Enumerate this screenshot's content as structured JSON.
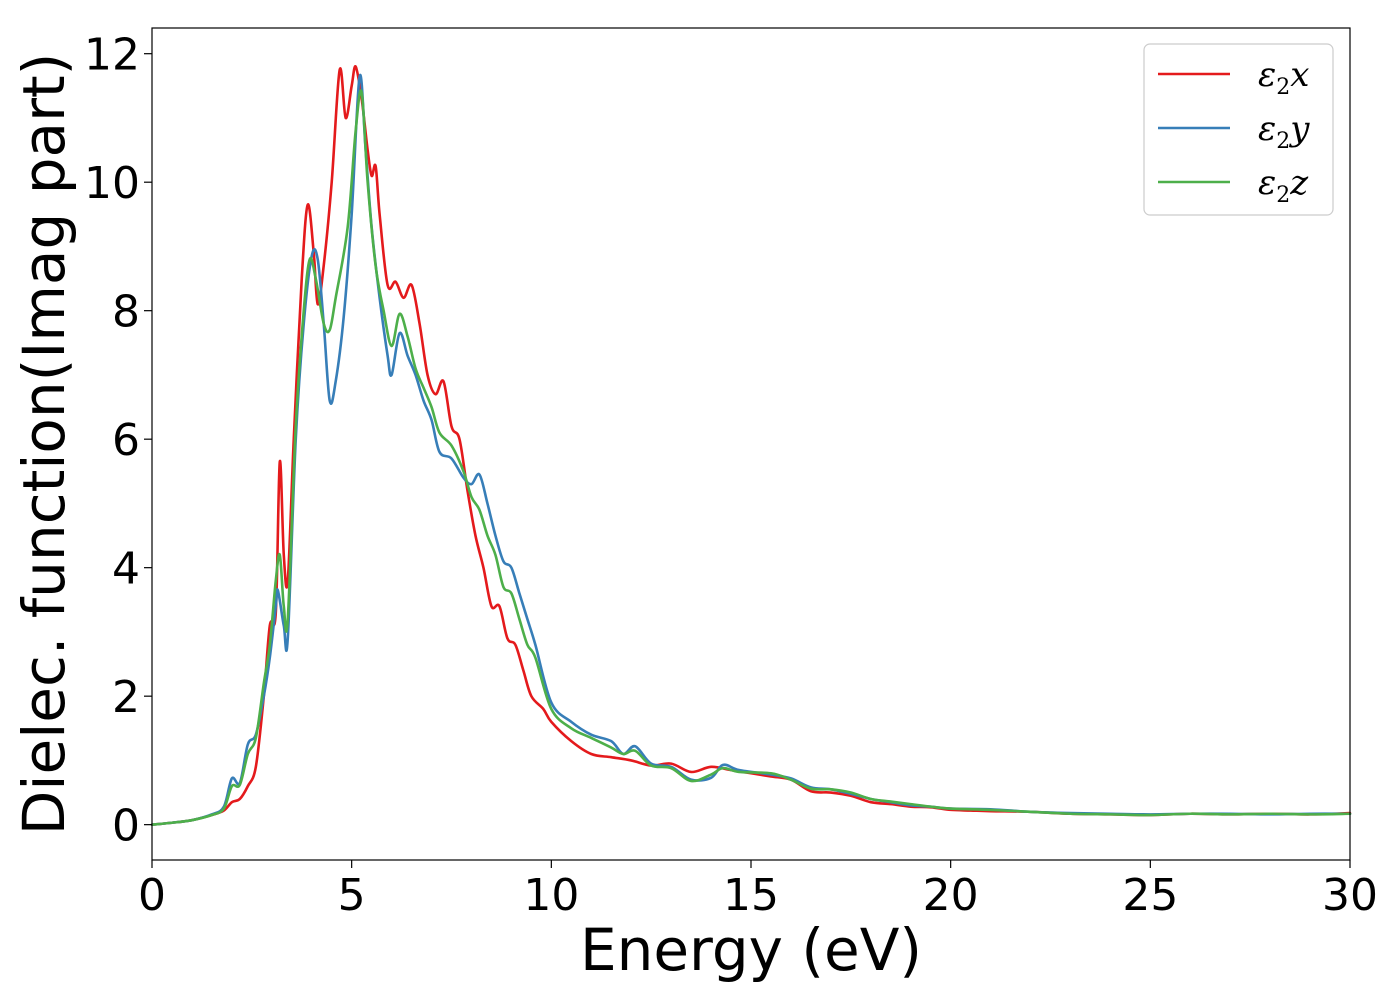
{
  "chart_data": {
    "type": "line",
    "title": "",
    "xlabel": "Energy (eV)",
    "ylabel": "Dielec. function(Imag part)",
    "xlim": [
      0,
      30
    ],
    "ylim": [
      -0.55,
      12.4
    ],
    "xticks": [
      0,
      5,
      10,
      15,
      20,
      25,
      30
    ],
    "yticks": [
      0,
      2,
      4,
      6,
      8,
      10,
      12
    ],
    "grid": false,
    "legend_position": "top-right",
    "series": [
      {
        "name": "ε₂x",
        "legend_base": "ε",
        "legend_sub": "2",
        "legend_tail": "x",
        "color": "#e41a1c",
        "points": [
          [
            0,
            0
          ],
          [
            0.5,
            0.03
          ],
          [
            1,
            0.07
          ],
          [
            1.5,
            0.15
          ],
          [
            1.8,
            0.22
          ],
          [
            2,
            0.35
          ],
          [
            2.2,
            0.4
          ],
          [
            2.4,
            0.6
          ],
          [
            2.6,
            0.9
          ],
          [
            2.8,
            2.0
          ],
          [
            2.95,
            3.1
          ],
          [
            3.1,
            3.3
          ],
          [
            3.2,
            5.65
          ],
          [
            3.3,
            4.2
          ],
          [
            3.4,
            3.8
          ],
          [
            3.55,
            6.0
          ],
          [
            3.75,
            8.5
          ],
          [
            3.9,
            9.65
          ],
          [
            4.05,
            8.9
          ],
          [
            4.15,
            8.1
          ],
          [
            4.3,
            8.7
          ],
          [
            4.5,
            10.0
          ],
          [
            4.7,
            11.75
          ],
          [
            4.85,
            11.0
          ],
          [
            5.0,
            11.5
          ],
          [
            5.1,
            11.8
          ],
          [
            5.25,
            11.3
          ],
          [
            5.4,
            10.5
          ],
          [
            5.5,
            10.1
          ],
          [
            5.6,
            10.25
          ],
          [
            5.7,
            9.5
          ],
          [
            5.9,
            8.4
          ],
          [
            6.1,
            8.45
          ],
          [
            6.3,
            8.2
          ],
          [
            6.5,
            8.4
          ],
          [
            6.7,
            7.8
          ],
          [
            6.9,
            7.0
          ],
          [
            7.1,
            6.7
          ],
          [
            7.3,
            6.9
          ],
          [
            7.5,
            6.2
          ],
          [
            7.7,
            6.0
          ],
          [
            7.9,
            5.2
          ],
          [
            8.1,
            4.5
          ],
          [
            8.3,
            4.0
          ],
          [
            8.5,
            3.4
          ],
          [
            8.7,
            3.4
          ],
          [
            8.9,
            2.9
          ],
          [
            9.1,
            2.8
          ],
          [
            9.3,
            2.4
          ],
          [
            9.5,
            2.0
          ],
          [
            9.8,
            1.8
          ],
          [
            10,
            1.6
          ],
          [
            10.5,
            1.3
          ],
          [
            11,
            1.1
          ],
          [
            11.5,
            1.05
          ],
          [
            12,
            1.0
          ],
          [
            12.5,
            0.92
          ],
          [
            13,
            0.95
          ],
          [
            13.5,
            0.82
          ],
          [
            14,
            0.9
          ],
          [
            14.5,
            0.85
          ],
          [
            15,
            0.8
          ],
          [
            15.5,
            0.75
          ],
          [
            16,
            0.7
          ],
          [
            16.5,
            0.52
          ],
          [
            17,
            0.5
          ],
          [
            17.5,
            0.45
          ],
          [
            18,
            0.35
          ],
          [
            18.5,
            0.32
          ],
          [
            19,
            0.28
          ],
          [
            19.5,
            0.27
          ],
          [
            20,
            0.23
          ],
          [
            20.5,
            0.22
          ],
          [
            21,
            0.21
          ],
          [
            22,
            0.2
          ],
          [
            23,
            0.17
          ],
          [
            24,
            0.16
          ],
          [
            25,
            0.15
          ],
          [
            26,
            0.17
          ],
          [
            27,
            0.16
          ],
          [
            28,
            0.17
          ],
          [
            29,
            0.16
          ],
          [
            30,
            0.18
          ]
        ]
      },
      {
        "name": "ε₂y",
        "legend_base": "ε",
        "legend_sub": "2",
        "legend_tail": "y",
        "color": "#377eb8",
        "points": [
          [
            0,
            0
          ],
          [
            0.5,
            0.03
          ],
          [
            1,
            0.07
          ],
          [
            1.5,
            0.16
          ],
          [
            1.8,
            0.28
          ],
          [
            2.0,
            0.72
          ],
          [
            2.2,
            0.65
          ],
          [
            2.4,
            1.25
          ],
          [
            2.6,
            1.4
          ],
          [
            2.8,
            2.0
          ],
          [
            2.95,
            2.6
          ],
          [
            3.1,
            3.4
          ],
          [
            3.15,
            3.65
          ],
          [
            3.3,
            3.1
          ],
          [
            3.4,
            2.9
          ],
          [
            3.6,
            6.0
          ],
          [
            3.8,
            7.8
          ],
          [
            4.0,
            8.85
          ],
          [
            4.15,
            8.8
          ],
          [
            4.3,
            7.8
          ],
          [
            4.45,
            6.6
          ],
          [
            4.6,
            6.9
          ],
          [
            4.8,
            7.9
          ],
          [
            5.0,
            9.5
          ],
          [
            5.2,
            11.65
          ],
          [
            5.35,
            10.5
          ],
          [
            5.5,
            9.3
          ],
          [
            5.7,
            8.2
          ],
          [
            5.9,
            7.3
          ],
          [
            6.0,
            7.0
          ],
          [
            6.2,
            7.65
          ],
          [
            6.4,
            7.3
          ],
          [
            6.6,
            7.0
          ],
          [
            6.8,
            6.6
          ],
          [
            7.0,
            6.3
          ],
          [
            7.2,
            5.8
          ],
          [
            7.5,
            5.7
          ],
          [
            7.8,
            5.4
          ],
          [
            8.0,
            5.3
          ],
          [
            8.2,
            5.45
          ],
          [
            8.4,
            5.0
          ],
          [
            8.6,
            4.5
          ],
          [
            8.8,
            4.1
          ],
          [
            9.0,
            4.0
          ],
          [
            9.2,
            3.6
          ],
          [
            9.4,
            3.2
          ],
          [
            9.6,
            2.8
          ],
          [
            10,
            1.9
          ],
          [
            10.5,
            1.6
          ],
          [
            11,
            1.4
          ],
          [
            11.5,
            1.3
          ],
          [
            11.8,
            1.1
          ],
          [
            12.1,
            1.22
          ],
          [
            12.5,
            0.95
          ],
          [
            13,
            0.9
          ],
          [
            13.5,
            0.7
          ],
          [
            14,
            0.73
          ],
          [
            14.3,
            0.93
          ],
          [
            14.7,
            0.85
          ],
          [
            15.5,
            0.78
          ],
          [
            16,
            0.72
          ],
          [
            16.5,
            0.58
          ],
          [
            17,
            0.55
          ],
          [
            17.5,
            0.48
          ],
          [
            18,
            0.4
          ],
          [
            18.5,
            0.35
          ],
          [
            19,
            0.3
          ],
          [
            19.5,
            0.28
          ],
          [
            20,
            0.25
          ],
          [
            21,
            0.24
          ],
          [
            22,
            0.2
          ],
          [
            23,
            0.18
          ],
          [
            24,
            0.17
          ],
          [
            25,
            0.16
          ],
          [
            26,
            0.17
          ],
          [
            27,
            0.17
          ],
          [
            28,
            0.16
          ],
          [
            29,
            0.17
          ],
          [
            30,
            0.17
          ]
        ]
      },
      {
        "name": "ε₂z",
        "legend_base": "ε",
        "legend_sub": "2",
        "legend_tail": "z",
        "color": "#4daf4a",
        "points": [
          [
            0,
            0
          ],
          [
            0.5,
            0.03
          ],
          [
            1,
            0.07
          ],
          [
            1.5,
            0.15
          ],
          [
            1.8,
            0.25
          ],
          [
            2.0,
            0.6
          ],
          [
            2.2,
            0.62
          ],
          [
            2.4,
            1.1
          ],
          [
            2.6,
            1.35
          ],
          [
            2.8,
            2.2
          ],
          [
            2.95,
            2.8
          ],
          [
            3.1,
            3.8
          ],
          [
            3.2,
            4.2
          ],
          [
            3.3,
            3.4
          ],
          [
            3.4,
            3.2
          ],
          [
            3.6,
            6.2
          ],
          [
            3.8,
            8.0
          ],
          [
            3.95,
            8.8
          ],
          [
            4.1,
            8.5
          ],
          [
            4.3,
            7.8
          ],
          [
            4.45,
            7.7
          ],
          [
            4.6,
            8.2
          ],
          [
            4.9,
            9.3
          ],
          [
            5.1,
            10.8
          ],
          [
            5.25,
            11.4
          ],
          [
            5.4,
            10.0
          ],
          [
            5.6,
            8.7
          ],
          [
            5.8,
            8.0
          ],
          [
            6.0,
            7.45
          ],
          [
            6.2,
            7.95
          ],
          [
            6.4,
            7.6
          ],
          [
            6.6,
            7.1
          ],
          [
            6.8,
            6.8
          ],
          [
            7.0,
            6.5
          ],
          [
            7.2,
            6.1
          ],
          [
            7.5,
            5.9
          ],
          [
            7.8,
            5.5
          ],
          [
            8.0,
            5.1
          ],
          [
            8.2,
            4.9
          ],
          [
            8.4,
            4.5
          ],
          [
            8.6,
            4.2
          ],
          [
            8.8,
            3.7
          ],
          [
            9.0,
            3.6
          ],
          [
            9.2,
            3.2
          ],
          [
            9.4,
            2.8
          ],
          [
            9.6,
            2.6
          ],
          [
            10,
            1.8
          ],
          [
            10.5,
            1.5
          ],
          [
            11,
            1.35
          ],
          [
            11.5,
            1.2
          ],
          [
            11.8,
            1.1
          ],
          [
            12.1,
            1.15
          ],
          [
            12.5,
            0.92
          ],
          [
            13,
            0.88
          ],
          [
            13.5,
            0.68
          ],
          [
            14,
            0.78
          ],
          [
            14.3,
            0.88
          ],
          [
            14.7,
            0.82
          ],
          [
            15.5,
            0.8
          ],
          [
            16,
            0.7
          ],
          [
            16.5,
            0.56
          ],
          [
            17,
            0.55
          ],
          [
            17.5,
            0.5
          ],
          [
            18,
            0.4
          ],
          [
            18.5,
            0.36
          ],
          [
            19,
            0.32
          ],
          [
            19.5,
            0.28
          ],
          [
            20,
            0.25
          ],
          [
            21,
            0.23
          ],
          [
            22,
            0.2
          ],
          [
            23,
            0.17
          ],
          [
            24,
            0.16
          ],
          [
            25,
            0.15
          ],
          [
            26,
            0.17
          ],
          [
            27,
            0.16
          ],
          [
            28,
            0.17
          ],
          [
            29,
            0.16
          ],
          [
            30,
            0.17
          ]
        ]
      }
    ]
  }
}
